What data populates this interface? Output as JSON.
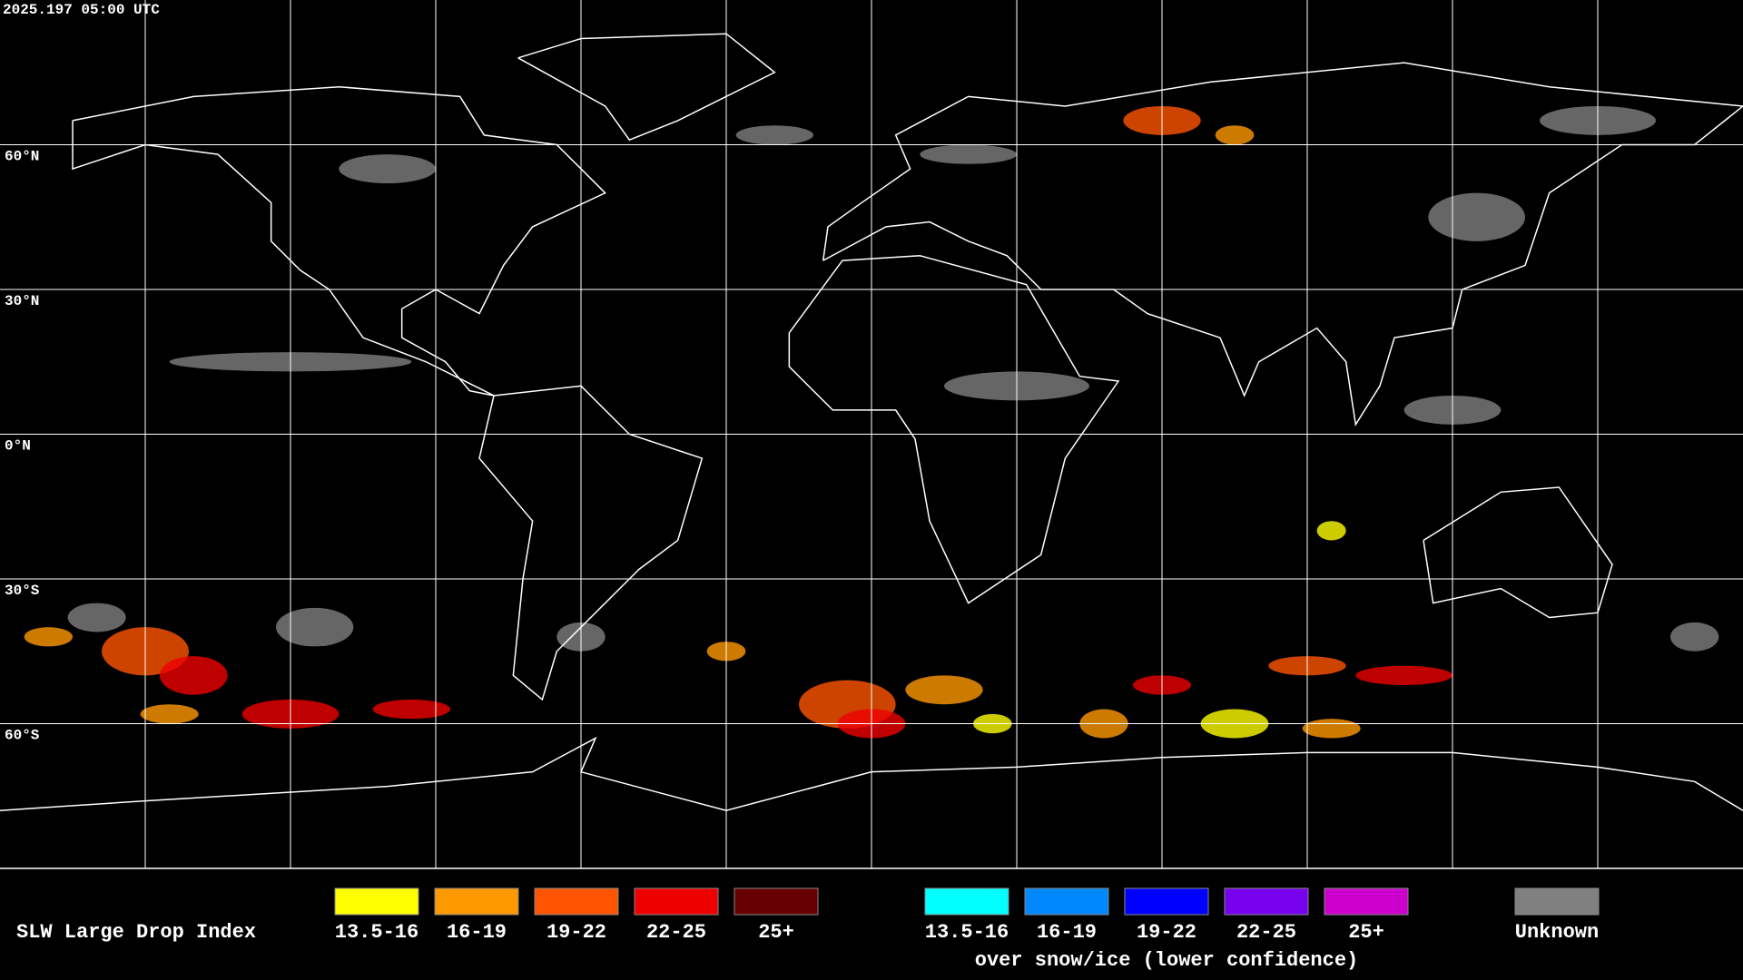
{
  "timestamp": "2025.197 05:00 UTC",
  "map": {
    "latitude_labels": [
      "60°N",
      "30°N",
      "0°N",
      "30°S",
      "60°S"
    ]
  },
  "legend": {
    "title": "SLW Large Drop Index",
    "groups": [
      {
        "items": [
          {
            "label": "13.5-16",
            "color": "#ffff00"
          },
          {
            "label": "16-19",
            "color": "#ff9900"
          },
          {
            "label": "19-22",
            "color": "#ff5500"
          },
          {
            "label": "22-25",
            "color": "#ee0000"
          },
          {
            "label": "25+",
            "color": "#660000"
          }
        ]
      },
      {
        "items": [
          {
            "label": "13.5-16",
            "color": "#00ffff"
          },
          {
            "label": "16-19",
            "color": "#0088ff"
          },
          {
            "label": "19-22",
            "color": "#0000ff"
          },
          {
            "label": "22-25",
            "color": "#7700ee"
          },
          {
            "label": "25+",
            "color": "#cc00cc"
          }
        ],
        "caption": "over snow/ice (lower confidence)"
      },
      {
        "items": [
          {
            "label": "Unknown",
            "color": "#808080"
          }
        ]
      }
    ]
  }
}
